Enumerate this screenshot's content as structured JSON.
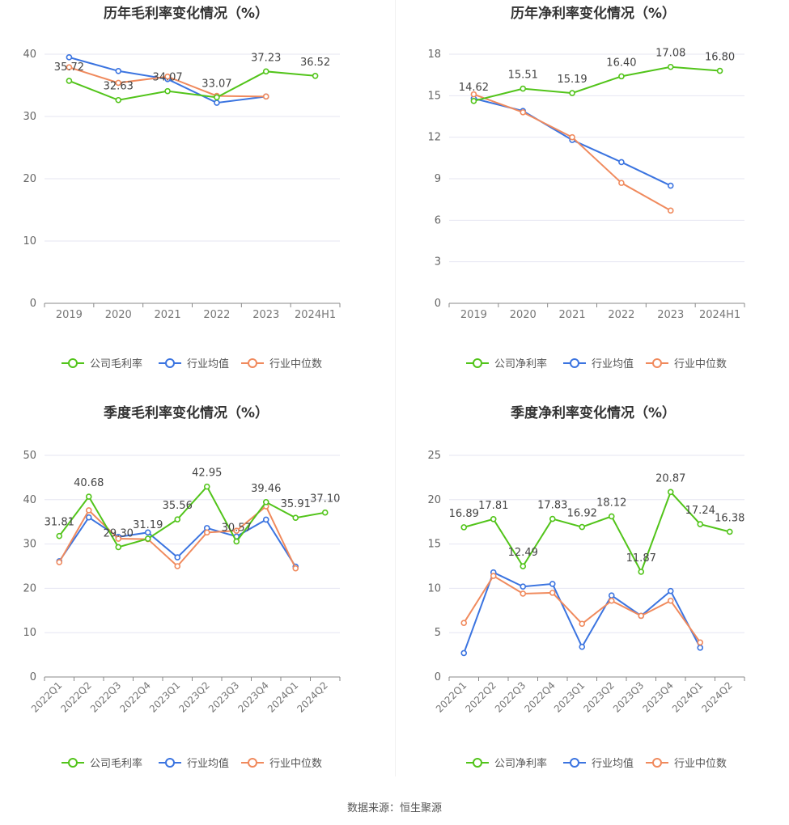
{
  "source": "数据来源：恒生聚源",
  "chart_data": [
    {
      "type": "line",
      "title": "历年毛利率变化情况（%）",
      "categories": [
        "2019",
        "2020",
        "2021",
        "2022",
        "2023",
        "2024H1"
      ],
      "ylim": [
        0,
        40
      ],
      "yticks": [
        0,
        10,
        20,
        30,
        40
      ],
      "legend_position": "bottom",
      "grid": true,
      "series": [
        {
          "name": "公司毛利率",
          "color": "#52c41a",
          "values": [
            35.72,
            32.63,
            34.07,
            33.07,
            37.23,
            36.52
          ],
          "labels": [
            "35.72",
            "32.63",
            "34.07",
            "33.07",
            "37.23",
            "36.52"
          ]
        },
        {
          "name": "行业均值",
          "color": "#3b74e0",
          "values": [
            39.5,
            37.3,
            36.0,
            32.2,
            33.2,
            null
          ]
        },
        {
          "name": "行业中位数",
          "color": "#f08a5d",
          "values": [
            37.9,
            35.4,
            36.4,
            33.3,
            33.2,
            null
          ]
        }
      ]
    },
    {
      "type": "line",
      "title": "历年净利率变化情况（%）",
      "categories": [
        "2019",
        "2020",
        "2021",
        "2022",
        "2023",
        "2024H1"
      ],
      "ylim": [
        0,
        18
      ],
      "yticks": [
        0,
        3,
        6,
        9,
        12,
        15,
        18
      ],
      "legend_position": "bottom",
      "grid": true,
      "series": [
        {
          "name": "公司净利率",
          "color": "#52c41a",
          "values": [
            14.62,
            15.51,
            15.19,
            16.4,
            17.08,
            16.8
          ],
          "labels": [
            "14.62",
            "15.51",
            "15.19",
            "16.40",
            "17.08",
            "16.80"
          ]
        },
        {
          "name": "行业均值",
          "color": "#3b74e0",
          "values": [
            14.8,
            13.9,
            11.8,
            10.2,
            8.5,
            null
          ]
        },
        {
          "name": "行业中位数",
          "color": "#f08a5d",
          "values": [
            15.1,
            13.8,
            12.0,
            8.7,
            6.7,
            null
          ]
        }
      ]
    },
    {
      "type": "line",
      "title": "季度毛利率变化情况（%）",
      "categories": [
        "2022Q1",
        "2022Q2",
        "2022Q3",
        "2022Q4",
        "2023Q1",
        "2023Q2",
        "2023Q3",
        "2023Q4",
        "2024Q1",
        "2024Q2"
      ],
      "ylim": [
        0,
        50
      ],
      "yticks": [
        0,
        10,
        20,
        30,
        40,
        50
      ],
      "legend_position": "bottom",
      "grid": true,
      "series": [
        {
          "name": "公司毛利率",
          "color": "#52c41a",
          "values": [
            31.81,
            40.68,
            29.3,
            31.19,
            35.56,
            42.95,
            30.57,
            39.46,
            35.91,
            37.1
          ],
          "labels": [
            "31.81",
            "40.68",
            "29.30",
            "31.19",
            "35.56",
            "42.95",
            "30.57",
            "39.46",
            "35.91",
            "37.10"
          ]
        },
        {
          "name": "行业均值",
          "color": "#3b74e0",
          "values": [
            26.1,
            36.0,
            31.6,
            32.6,
            27.0,
            33.6,
            31.7,
            35.5,
            24.9,
            null
          ]
        },
        {
          "name": "行业中位数",
          "color": "#f08a5d",
          "values": [
            25.9,
            37.6,
            31.2,
            31.1,
            25.0,
            32.6,
            33.0,
            38.5,
            24.5,
            null
          ]
        }
      ]
    },
    {
      "type": "line",
      "title": "季度净利率变化情况（%）",
      "categories": [
        "2022Q1",
        "2022Q2",
        "2022Q3",
        "2022Q4",
        "2023Q1",
        "2023Q2",
        "2023Q3",
        "2023Q4",
        "2024Q1",
        "2024Q2"
      ],
      "ylim": [
        0,
        25
      ],
      "yticks": [
        0,
        5,
        10,
        15,
        20,
        25
      ],
      "legend_position": "bottom",
      "grid": true,
      "series": [
        {
          "name": "公司净利率",
          "color": "#52c41a",
          "values": [
            16.89,
            17.81,
            12.49,
            17.83,
            16.92,
            18.12,
            11.87,
            20.87,
            17.24,
            16.38
          ],
          "labels": [
            "16.89",
            "17.81",
            "12.49",
            "17.83",
            "16.92",
            "18.12",
            "11.87",
            "20.87",
            "17.24",
            "16.38"
          ]
        },
        {
          "name": "行业均值",
          "color": "#3b74e0",
          "values": [
            2.7,
            11.8,
            10.2,
            10.5,
            3.4,
            9.2,
            6.9,
            9.7,
            3.3,
            null
          ]
        },
        {
          "name": "行业中位数",
          "color": "#f08a5d",
          "values": [
            6.1,
            11.4,
            9.4,
            9.5,
            6.0,
            8.6,
            6.9,
            8.6,
            3.9,
            null
          ]
        }
      ]
    }
  ]
}
